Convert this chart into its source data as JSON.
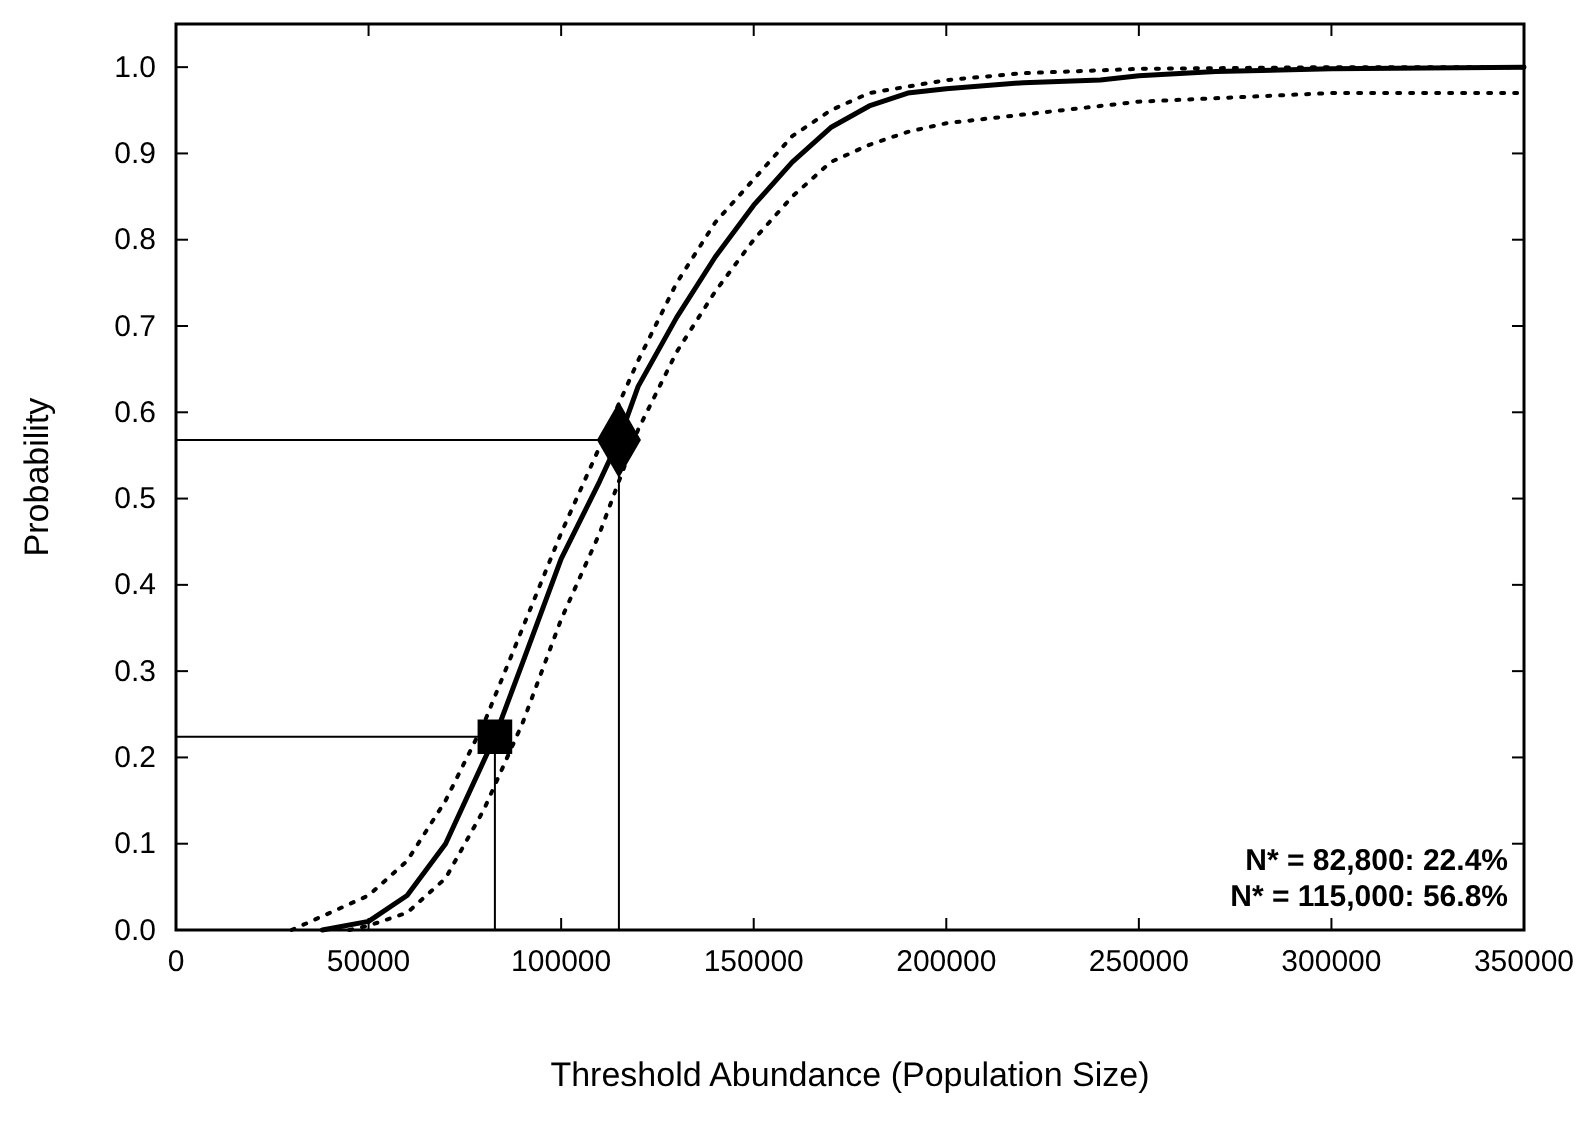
{
  "chart_data": {
    "type": "line",
    "xlabel": "Threshold Abundance (Population Size)",
    "ylabel": "Probability",
    "xlim": [
      0,
      350000
    ],
    "xticks": [
      0,
      50000,
      100000,
      150000,
      200000,
      250000,
      300000,
      350000
    ],
    "ylim": [
      0,
      1.05
    ],
    "yticks": [
      {
        "value": 0,
        "label": "0.0"
      },
      {
        "value": 0.1,
        "label": "0.1"
      },
      {
        "value": 0.2,
        "label": "0.2"
      },
      {
        "value": 0.3,
        "label": "0.3"
      },
      {
        "value": 0.4,
        "label": "0.4"
      },
      {
        "value": 0.5,
        "label": "0.5"
      },
      {
        "value": 0.6,
        "label": "0.6"
      },
      {
        "value": 0.7,
        "label": "0.7"
      },
      {
        "value": 0.8,
        "label": "0.8"
      },
      {
        "value": 0.9,
        "label": "0.9"
      },
      {
        "value": 1,
        "label": "1.0"
      }
    ],
    "grid": false,
    "series": [
      {
        "color": "#000000",
        "line_style": "dotted",
        "x": [
          30000,
          40000,
          50000,
          60000,
          70000,
          80000,
          90000,
          100000,
          110000,
          120000,
          130000,
          140000,
          150000,
          160000,
          170000,
          180000,
          200000,
          220000,
          250000,
          300000,
          350000
        ],
        "values": [
          0,
          0.02,
          0.04,
          0.08,
          0.15,
          0.24,
          0.35,
          0.46,
          0.56,
          0.66,
          0.75,
          0.82,
          0.87,
          0.92,
          0.95,
          0.97,
          0.985,
          0.993,
          0.998,
          1,
          1
        ]
      },
      {
        "color": "#000000",
        "line_style": "dotted",
        "x": [
          45000,
          50000,
          60000,
          70000,
          80000,
          90000,
          100000,
          110000,
          120000,
          130000,
          140000,
          150000,
          160000,
          170000,
          180000,
          190000,
          200000,
          220000,
          250000,
          300000,
          350000
        ],
        "values": [
          0,
          0.005,
          0.02,
          0.06,
          0.14,
          0.24,
          0.36,
          0.46,
          0.58,
          0.67,
          0.74,
          0.8,
          0.85,
          0.89,
          0.91,
          0.925,
          0.935,
          0.945,
          0.96,
          0.97,
          0.97
        ]
      },
      {
        "color": "#000000",
        "line_style": "solid",
        "x": [
          38000,
          50000,
          60000,
          70000,
          82800,
          90000,
          100000,
          110000,
          115000,
          120000,
          130000,
          140000,
          150000,
          160000,
          170000,
          180000,
          190000,
          200000,
          220000,
          240000,
          250000,
          270000,
          300000,
          350000
        ],
        "values": [
          0,
          0.01,
          0.04,
          0.1,
          0.224,
          0.31,
          0.43,
          0.52,
          0.568,
          0.63,
          0.71,
          0.78,
          0.84,
          0.89,
          0.93,
          0.955,
          0.97,
          0.975,
          0.982,
          0.985,
          0.99,
          0.995,
          0.998,
          1
        ]
      },
      {
        "color": "#000000",
        "line_style": "solid",
        "x": [
          0,
          82800,
          82800
        ],
        "values": [
          0.224,
          0.224,
          0
        ]
      },
      {
        "color": "#000000",
        "line_style": "solid",
        "x": [
          0,
          115000,
          115000
        ],
        "values": [
          0.568,
          0.568,
          0
        ]
      },
      {
        "type": "scatter",
        "marker": "square",
        "color": "#000000",
        "x": [
          82800
        ],
        "values": [
          0.224
        ]
      },
      {
        "type": "scatter",
        "marker": "diamond",
        "color": "#000000",
        "x": [
          115000
        ],
        "values": [
          0.568
        ]
      }
    ],
    "annotations": [
      "N* = 82,800: 22.4%",
      "N* = 115,000: 56.8%"
    ]
  }
}
